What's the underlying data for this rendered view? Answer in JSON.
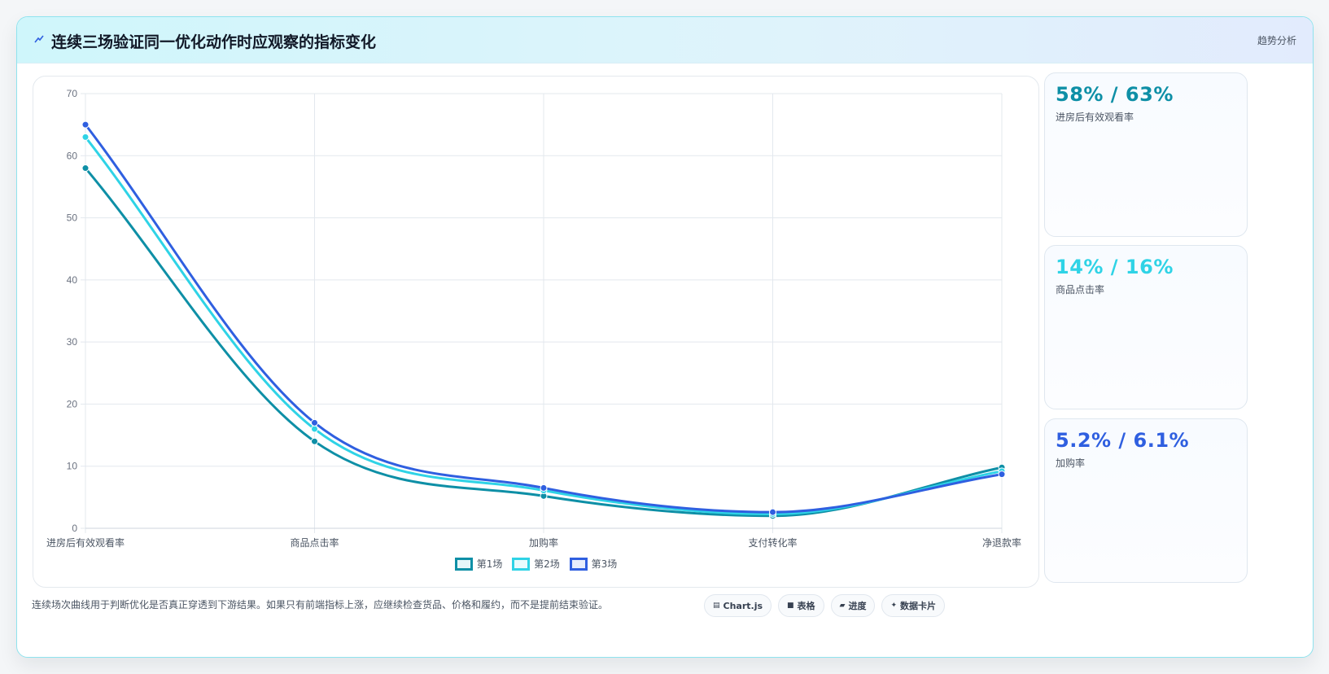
{
  "header": {
    "title": "连续三场验证同一优化动作时应观察的指标变化",
    "tag": "趋势分析"
  },
  "chart_data": {
    "type": "line",
    "categories": [
      "进房后有效观看率",
      "商品点击率",
      "加购率",
      "支付转化率",
      "净退款率"
    ],
    "series": [
      {
        "name": "第1场",
        "color": "#0e8fa6",
        "values": [
          58,
          14,
          5.2,
          2.0,
          9.8
        ]
      },
      {
        "name": "第2场",
        "color": "#2fd3e6",
        "values": [
          63,
          16,
          6.1,
          2.3,
          9.2
        ]
      },
      {
        "name": "第3场",
        "color": "#2f5fe0",
        "values": [
          65,
          17,
          6.5,
          2.6,
          8.7
        ]
      }
    ],
    "ylim": [
      0,
      70
    ],
    "yticks": [
      0,
      10,
      20,
      30,
      40,
      50,
      60,
      70
    ],
    "grid": true,
    "legend": "bottom"
  },
  "kpis": [
    {
      "value": "58% / 63%",
      "label": "进房后有效观看率",
      "color": "#0e8fa6"
    },
    {
      "value": "14% / 16%",
      "label": "商品点击率",
      "color": "#2fd3e6"
    },
    {
      "value": "5.2% / 6.1%",
      "label": "加购率",
      "color": "#2f5fe0"
    }
  ],
  "footer": {
    "note": "连续场次曲线用于判断优化是否真正穿透到下游结果。如果只有前端指标上涨，应继续检查货品、价格和履约，而不是提前结束验证。",
    "chips": [
      {
        "icon": "chart-icon",
        "label": "Chart.js"
      },
      {
        "icon": "table-icon",
        "label": "表格"
      },
      {
        "icon": "progress-icon",
        "label": "进度"
      },
      {
        "icon": "data-card-icon",
        "label": "数据卡片"
      }
    ]
  }
}
